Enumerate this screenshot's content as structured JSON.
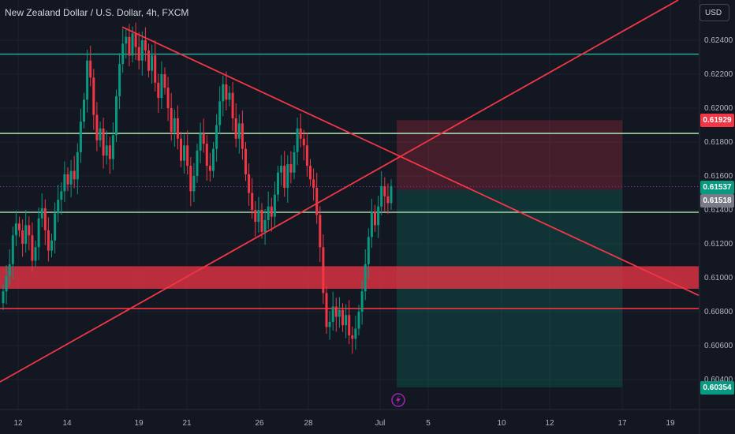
{
  "header": {
    "title": "New Zealand Dollar / U.S. Dollar, 4h, FXCM",
    "currency_button": "USD"
  },
  "price_tags": {
    "stop": {
      "label": "0.61929",
      "color": "#f23645"
    },
    "current": {
      "label": "0.61537",
      "color": "#089981"
    },
    "prev": {
      "label": "0.61518",
      "color": "#787b86"
    },
    "target": {
      "label": "0.60354",
      "color": "#089981"
    }
  },
  "colors": {
    "bull": "#089981",
    "bear": "#f23645",
    "trendline": "#f23645",
    "level_green": "#26a69a"
  },
  "chart_data": {
    "type": "candlestick",
    "title": "New Zealand Dollar / U.S. Dollar, 4h, FXCM",
    "y_ticks": [
      "0.62400",
      "0.62200",
      "0.62000",
      "0.61800",
      "0.61600",
      "0.61400",
      "0.61200",
      "0.61000",
      "0.60800",
      "0.60600",
      "0.60400"
    ],
    "x_ticks": [
      "12",
      "14",
      "19",
      "21",
      "26",
      "28",
      "Jul",
      "5",
      "10",
      "12",
      "17",
      "19"
    ],
    "ylim": [
      0.6026,
      0.6264
    ],
    "horizontal_levels": [
      {
        "price": 0.62318,
        "color": "#26a69a"
      },
      {
        "price": 0.61851,
        "color": "#a5d6a7"
      },
      {
        "price": 0.61386,
        "color": "#a5d6a7"
      },
      {
        "price": 0.60819,
        "color": "#f23645"
      }
    ],
    "zone": {
      "from": 0.60935,
      "to": 0.61068,
      "color": "#f23645"
    },
    "position": {
      "entry": 0.61518,
      "stop": 0.61929,
      "target": 0.60354
    },
    "closes": [
      0.6092,
      0.6101,
      0.6108,
      0.6125,
      0.6132,
      0.6128,
      0.612,
      0.6131,
      0.6125,
      0.611,
      0.6118,
      0.6135,
      0.6141,
      0.6128,
      0.6116,
      0.6122,
      0.6138,
      0.6146,
      0.6151,
      0.6161,
      0.6155,
      0.6163,
      0.6158,
      0.6174,
      0.6192,
      0.6205,
      0.6228,
      0.6218,
      0.6196,
      0.6181,
      0.6188,
      0.6172,
      0.6178,
      0.617,
      0.6184,
      0.6207,
      0.6226,
      0.6238,
      0.6242,
      0.6231,
      0.6244,
      0.6236,
      0.6228,
      0.624,
      0.6234,
      0.6222,
      0.6231,
      0.6215,
      0.6206,
      0.622,
      0.6212,
      0.62,
      0.6186,
      0.6194,
      0.6182,
      0.6169,
      0.6178,
      0.6166,
      0.6151,
      0.616,
      0.6175,
      0.6185,
      0.6179,
      0.6166,
      0.6163,
      0.6176,
      0.619,
      0.6204,
      0.6214,
      0.6205,
      0.6209,
      0.6194,
      0.6182,
      0.6191,
      0.6176,
      0.6161,
      0.615,
      0.614,
      0.6133,
      0.614,
      0.6127,
      0.6134,
      0.6142,
      0.6136,
      0.6149,
      0.6162,
      0.6166,
      0.6153,
      0.6167,
      0.6162,
      0.6174,
      0.6188,
      0.6182,
      0.6178,
      0.6166,
      0.6158,
      0.6153,
      0.6137,
      0.6118,
      0.6091,
      0.6071,
      0.6074,
      0.6083,
      0.6077,
      0.6081,
      0.6072,
      0.6078,
      0.6066,
      0.6064,
      0.607,
      0.608,
      0.6092,
      0.6108,
      0.6124,
      0.6139,
      0.6131,
      0.6142,
      0.6154,
      0.6148,
      0.6144,
      0.6154
    ]
  }
}
